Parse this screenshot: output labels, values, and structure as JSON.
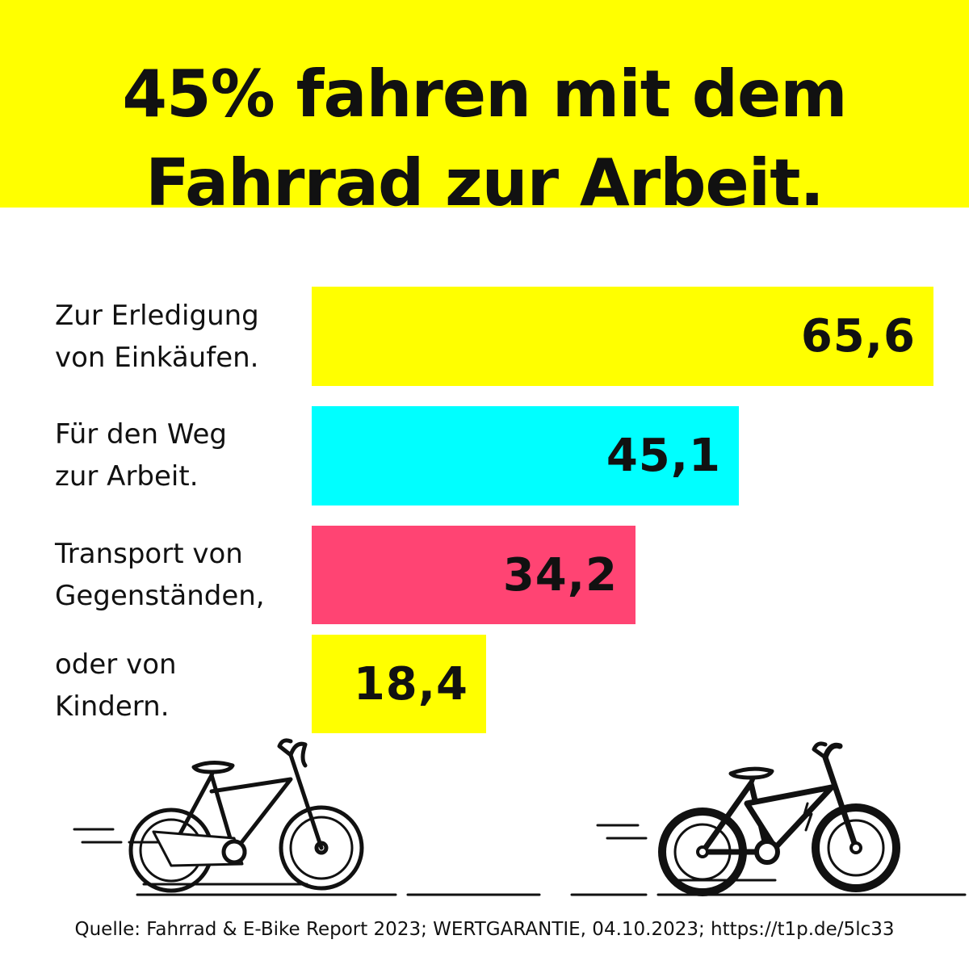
{
  "header": {
    "title": "45% fahren mit dem\nFahrrad zur Arbeit."
  },
  "chart_data": {
    "type": "bar",
    "orientation": "horizontal",
    "categories": [
      "Zur Erledigung\nvon Einkäufen.",
      "Für den Weg\nzur Arbeit.",
      "Transport von\nGegenständen,",
      "oder von\nKindern."
    ],
    "values": [
      65.6,
      45.1,
      34.2,
      18.4
    ],
    "value_labels": [
      "65,6",
      "45,1",
      "34,2",
      "18,4"
    ],
    "bar_colors": [
      "#ffff00",
      "#00ffff",
      "#ff4473",
      "#ffff00"
    ],
    "value_max": 65.6
  },
  "icons": [
    "bicycle-icon",
    "e-bike-icon"
  ],
  "colors": {
    "yellow": "#ffff00",
    "cyan": "#00ffff",
    "pink": "#ff4473"
  },
  "source": "Quelle: Fahrrad & E-Bike Report 2023; WERTGARANTIE, 04.10.2023; https://t1p.de/5lc33"
}
